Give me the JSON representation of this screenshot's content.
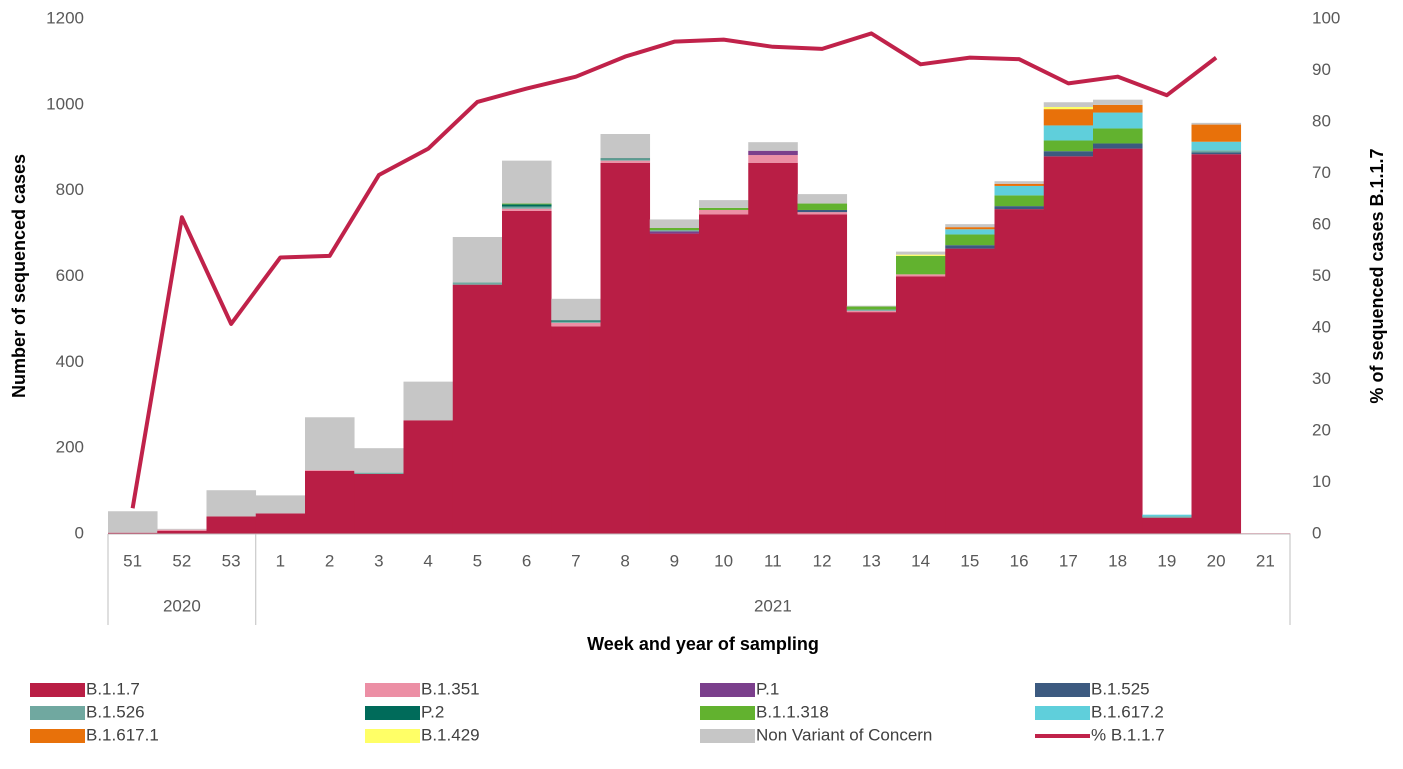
{
  "chart_data": {
    "type": "bar",
    "stacked": true,
    "x_label": "Week and year of sampling",
    "y_label": "Number of sequenced cases",
    "y2_label": "% of sequenced cases B.1.1.7",
    "categories": [
      "51",
      "52",
      "53",
      "1",
      "2",
      "3",
      "4",
      "5",
      "6",
      "7",
      "8",
      "9",
      "10",
      "11",
      "12",
      "13",
      "14",
      "15",
      "16",
      "17",
      "18",
      "19",
      "20",
      "21"
    ],
    "year_groups": [
      {
        "label": "2020",
        "weeks": 3
      },
      {
        "label": "2021",
        "weeks": 21
      }
    ],
    "ylim": [
      0,
      1200
    ],
    "yticks": [
      0,
      200,
      400,
      600,
      800,
      1000,
      1200
    ],
    "y2lim": [
      0,
      100
    ],
    "y2ticks": [
      0,
      10,
      20,
      30,
      40,
      50,
      60,
      70,
      80,
      90,
      100
    ],
    "grid": false,
    "series": [
      {
        "name": "B.1.1.7",
        "color": "#b91e45",
        "values": [
          3,
          7,
          41,
          48,
          147,
          140,
          265,
          581,
          753,
          484,
          865,
          700,
          745,
          865,
          745,
          517,
          600,
          665,
          757,
          880,
          898,
          38,
          885,
          0
        ]
      },
      {
        "name": "B.1.351",
        "color": "#ec8fa5",
        "values": [
          0,
          3,
          0,
          0,
          2,
          0,
          0,
          0,
          5,
          8,
          5,
          0,
          10,
          18,
          5,
          3,
          5,
          0,
          0,
          0,
          0,
          0,
          0,
          2
        ]
      },
      {
        "name": "P.1",
        "color": "#7b3f8c",
        "values": [
          0,
          0,
          0,
          0,
          0,
          0,
          0,
          0,
          0,
          0,
          0,
          5,
          0,
          10,
          0,
          0,
          0,
          0,
          0,
          0,
          0,
          0,
          0,
          0
        ]
      },
      {
        "name": "B.1.525",
        "color": "#3c5a80",
        "values": [
          0,
          0,
          0,
          0,
          0,
          0,
          0,
          0,
          0,
          0,
          0,
          0,
          0,
          0,
          5,
          0,
          0,
          8,
          7,
          12,
          12,
          0,
          4,
          0
        ]
      },
      {
        "name": "B.1.526",
        "color": "#70a8a0",
        "values": [
          0,
          0,
          0,
          0,
          0,
          3,
          0,
          5,
          5,
          3,
          3,
          3,
          0,
          0,
          0,
          3,
          0,
          0,
          0,
          0,
          0,
          3,
          5,
          0
        ]
      },
      {
        "name": "P.2",
        "color": "#006b5a",
        "values": [
          0,
          0,
          0,
          0,
          0,
          0,
          0,
          0,
          5,
          3,
          2,
          0,
          0,
          0,
          0,
          0,
          0,
          0,
          0,
          0,
          0,
          0,
          0,
          0
        ]
      },
      {
        "name": "B.1.1.318",
        "color": "#62b22f",
        "values": [
          0,
          0,
          0,
          0,
          0,
          0,
          0,
          0,
          2,
          0,
          0,
          5,
          5,
          0,
          15,
          7,
          43,
          25,
          25,
          25,
          35,
          0,
          0,
          0
        ]
      },
      {
        "name": "B.1.617.2",
        "color": "#5fcfdb",
        "values": [
          0,
          0,
          0,
          0,
          0,
          0,
          0,
          0,
          0,
          0,
          0,
          0,
          0,
          0,
          0,
          0,
          0,
          12,
          22,
          35,
          37,
          4,
          20,
          0
        ]
      },
      {
        "name": "B.1.617.1",
        "color": "#e8710a",
        "values": [
          0,
          0,
          0,
          0,
          0,
          0,
          0,
          0,
          0,
          0,
          0,
          0,
          0,
          0,
          0,
          0,
          0,
          5,
          5,
          38,
          18,
          0,
          40,
          0
        ]
      },
      {
        "name": "B.1.429",
        "color": "#ffff66",
        "values": [
          0,
          0,
          0,
          0,
          0,
          0,
          0,
          0,
          0,
          0,
          0,
          0,
          0,
          0,
          0,
          0,
          3,
          0,
          0,
          5,
          0,
          0,
          0,
          0
        ]
      },
      {
        "name": "Non Variant of Concern",
        "color": "#c6c6c6",
        "values": [
          50,
          2,
          61,
          42,
          123,
          57,
          90,
          106,
          100,
          50,
          57,
          20,
          18,
          20,
          22,
          2,
          7,
          7,
          6,
          11,
          12,
          0,
          4,
          0
        ]
      },
      {
        "name": "% B.1.1.7",
        "color": "#c0224a",
        "type": "line",
        "axis": "y2",
        "values": [
          5,
          61.5,
          40.8,
          53.7,
          54,
          69.7,
          74.8,
          83.9,
          86.5,
          88.8,
          92.7,
          95.6,
          96,
          94.6,
          94.2,
          97.2,
          91.2,
          92.5,
          92.2,
          87.5,
          88.8,
          85.2,
          92.5,
          null
        ]
      }
    ]
  }
}
